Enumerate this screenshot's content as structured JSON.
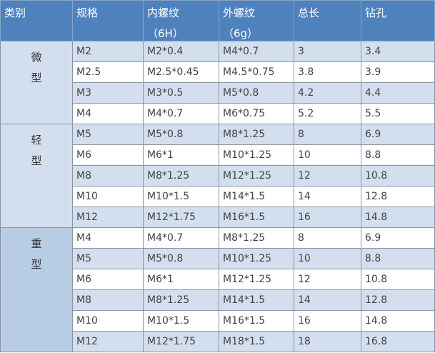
{
  "headers": [
    {
      "label": "类别",
      "sub": ""
    },
    {
      "label": "规格",
      "sub": ""
    },
    {
      "label": "内螺纹",
      "sub": "（6H）"
    },
    {
      "label": "外螺纹",
      "sub": "（6g）"
    },
    {
      "label": "总长",
      "sub": ""
    },
    {
      "label": "钻孔",
      "sub": ""
    }
  ],
  "colors": {
    "header": "#4f81bd",
    "row_alt": "#d3dfee",
    "category_heavy": "#b8cce4"
  },
  "groups": [
    {
      "category": [
        "微",
        "型"
      ],
      "rows": [
        [
          "M2",
          "M2*0.4",
          "M4*0.7",
          "3",
          "3.4"
        ],
        [
          "M2.5",
          "M2.5*0.45",
          "M4.5*0.75",
          "3.8",
          "3.9"
        ],
        [
          "M3",
          "M3*0.5",
          "M5*0.8",
          "4.2",
          "4.4"
        ],
        [
          "M4",
          "M4*0.7",
          "M6*0.75",
          "5.2",
          "5.5"
        ]
      ]
    },
    {
      "category": [
        "轻",
        "型"
      ],
      "rows": [
        [
          "M5",
          "M5*0.8",
          "M8*1.25",
          "8",
          "6.9"
        ],
        [
          "M6",
          "M6*1",
          "M10*1.25",
          "10",
          "8.8"
        ],
        [
          "M8",
          "M8*1.25",
          "M12*1.25",
          "12",
          "10.8"
        ],
        [
          "M10",
          "M10*1.5",
          "M14*1.5",
          "14",
          "12.8"
        ],
        [
          "M12",
          "M12*1.75",
          "M16*1.5",
          "16",
          "14.8"
        ]
      ]
    },
    {
      "category": [
        "重",
        "型"
      ],
      "rows": [
        [
          "M4",
          "M4*0.7",
          "M8*1.25",
          "8",
          "6.9"
        ],
        [
          "M5",
          "M5*0.8",
          "M10*1.25",
          "10",
          "8.8"
        ],
        [
          "M6",
          "M6*1",
          "M12*1.25",
          "12",
          "10.8"
        ],
        [
          "M8",
          "M8*1.25",
          "M14*1.5",
          "14",
          "12.8"
        ],
        [
          "M10",
          "M10*1.5",
          "M16*1.5",
          "16",
          "14.8"
        ],
        [
          "M12",
          "M12*1.75",
          "M18*1.5",
          "18",
          "16.8"
        ]
      ]
    }
  ]
}
